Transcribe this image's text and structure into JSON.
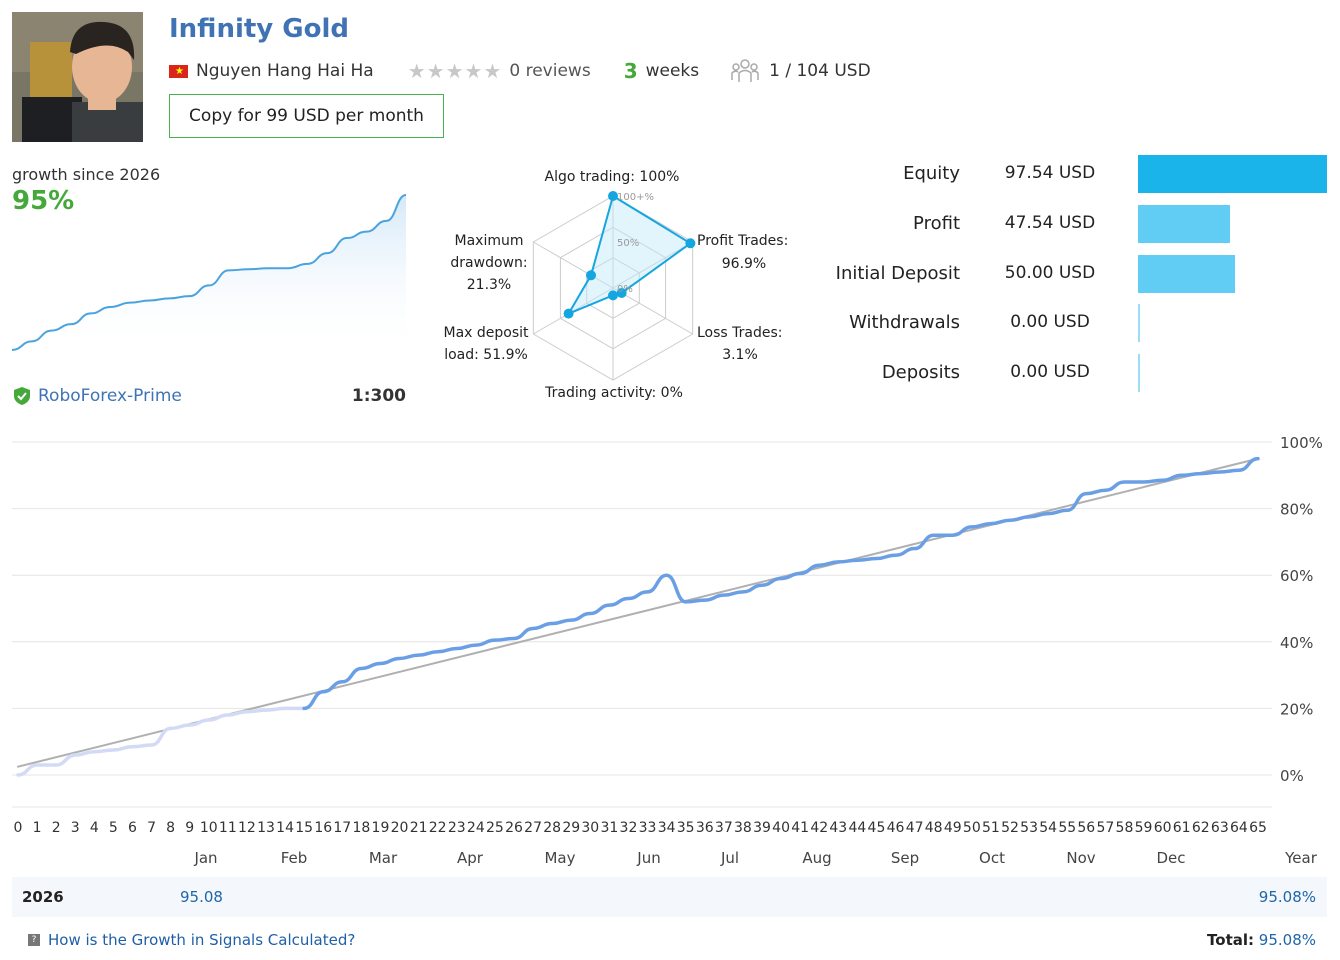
{
  "header": {
    "title": "Infinity Gold",
    "author": "Nguyen Hang Hai Ha",
    "reviews": "0 reviews",
    "weeks_num": "3",
    "weeks_label": "weeks",
    "subscribers": "1 / 104 USD",
    "copy_button": "Copy for 99 USD per month"
  },
  "summary": {
    "growth_label": "growth since 2026",
    "growth_value": "95%",
    "broker": "RoboForex-Prime",
    "leverage": "1:300"
  },
  "radar": {
    "labels": {
      "algo": "Algo trading: 100%",
      "profit_l1": "Profit Trades:",
      "profit_l2": "96.9%",
      "loss_l1": "Loss Trades:",
      "loss_l2": "3.1%",
      "activity": "Trading activity: 0%",
      "load_l1": "Max deposit",
      "load_l2": "load: 51.9%",
      "dd_l1": "Maximum",
      "dd_l2": "drawdown:",
      "dd_l3": "21.3%",
      "ring_100": "100+%",
      "ring_50": "50%",
      "ring_0": "0%"
    },
    "values": {
      "algo": 100,
      "profit": 96.9,
      "loss": 3.1,
      "activity": 0,
      "load": 51.9,
      "drawdown": 21.3
    }
  },
  "stats": [
    {
      "label": "Equity",
      "value": "97.54 USD",
      "amount": 97.54,
      "color": "#1ab4ea"
    },
    {
      "label": "Profit",
      "value": "47.54 USD",
      "amount": 47.54,
      "color": "#62cdf4"
    },
    {
      "label": "Initial Deposit",
      "value": "50.00 USD",
      "amount": 50.0,
      "color": "#62cdf4"
    },
    {
      "label": "Withdrawals",
      "value": "0.00 USD",
      "amount": 0,
      "color": "#9ddcf6"
    },
    {
      "label": "Deposits",
      "value": "0.00 USD",
      "amount": 0,
      "color": "#9ddcf6"
    }
  ],
  "chart_data": {
    "type": "line",
    "title": "",
    "y_ticks": [
      "100%",
      "80%",
      "60%",
      "40%",
      "20%",
      "0%"
    ],
    "ylim": [
      -10,
      100
    ],
    "x_ticks": [
      "0",
      "1",
      "2",
      "3",
      "4",
      "5",
      "6",
      "7",
      "8",
      "9",
      "10",
      "11",
      "12",
      "13",
      "14",
      "15",
      "16",
      "17",
      "18",
      "19",
      "20",
      "21",
      "22",
      "23",
      "24",
      "25",
      "26",
      "27",
      "28",
      "29",
      "30",
      "31",
      "32",
      "33",
      "34",
      "35",
      "36",
      "37",
      "38",
      "39",
      "40",
      "41",
      "42",
      "43",
      "44",
      "45",
      "46",
      "47",
      "48",
      "49",
      "50",
      "51",
      "52",
      "53",
      "54",
      "55",
      "56",
      "57",
      "58",
      "59",
      "60",
      "61",
      "62",
      "63",
      "64",
      "65"
    ],
    "months": [
      "Jan",
      "Feb",
      "Mar",
      "Apr",
      "May",
      "Jun",
      "Jul",
      "Aug",
      "Sep",
      "Oct",
      "Nov",
      "Dec",
      "Year"
    ],
    "series": [
      {
        "name": "growth-history",
        "color": "#d3daf5",
        "x": [
          0,
          1,
          2,
          3,
          4,
          5,
          6,
          7,
          8,
          9,
          10,
          11,
          12,
          13,
          14,
          15
        ],
        "y": [
          0,
          3,
          3,
          6,
          7,
          7.5,
          8.5,
          9,
          14,
          15,
          16.5,
          18,
          19,
          19.5,
          20,
          20
        ]
      },
      {
        "name": "growth",
        "color": "#6a9fe6",
        "x": [
          15,
          16,
          17,
          18,
          19,
          20,
          21,
          22,
          23,
          24,
          25,
          26,
          27,
          28,
          29,
          30,
          31,
          32,
          33,
          34,
          35,
          36,
          37,
          38,
          39,
          40,
          41,
          42,
          43,
          44,
          45,
          46,
          47,
          48,
          49,
          50,
          51,
          52,
          53,
          54,
          55,
          56,
          57,
          58,
          59,
          60,
          61,
          62,
          63,
          64,
          65
        ],
        "y": [
          20,
          25,
          28,
          32,
          33.5,
          35,
          36,
          37,
          38,
          39,
          40.5,
          41,
          44,
          45.5,
          46.5,
          48.5,
          51,
          53,
          55,
          60,
          52,
          52.5,
          54,
          55,
          57,
          59,
          60.5,
          63,
          64,
          64.5,
          65,
          66,
          68,
          72,
          72,
          74.5,
          75.5,
          76.5,
          77.5,
          78.5,
          79.5,
          84.5,
          85.5,
          88,
          88,
          88.5,
          90,
          90.5,
          91,
          91.5,
          95
        ]
      },
      {
        "name": "trend",
        "color": "#b0b0b0",
        "x": [
          0,
          65
        ],
        "y": [
          2.5,
          95
        ]
      }
    ],
    "mini": {
      "x": [
        0,
        1,
        2,
        3,
        4,
        5,
        6,
        7,
        8,
        9,
        10,
        11,
        12,
        13,
        14,
        15,
        16,
        17,
        18,
        19,
        20
      ],
      "y": [
        0,
        4,
        9,
        12,
        17,
        20,
        22,
        23,
        24,
        25,
        30,
        37,
        37.5,
        38,
        38,
        40,
        45,
        52,
        55,
        60,
        72
      ]
    }
  },
  "year_row": {
    "year": "2026",
    "jan": "95.08",
    "total": "95.08%"
  },
  "footer": {
    "faq": "How is the Growth in Signals Calculated?",
    "total_label": "Total:",
    "total_value": "95.08%"
  }
}
